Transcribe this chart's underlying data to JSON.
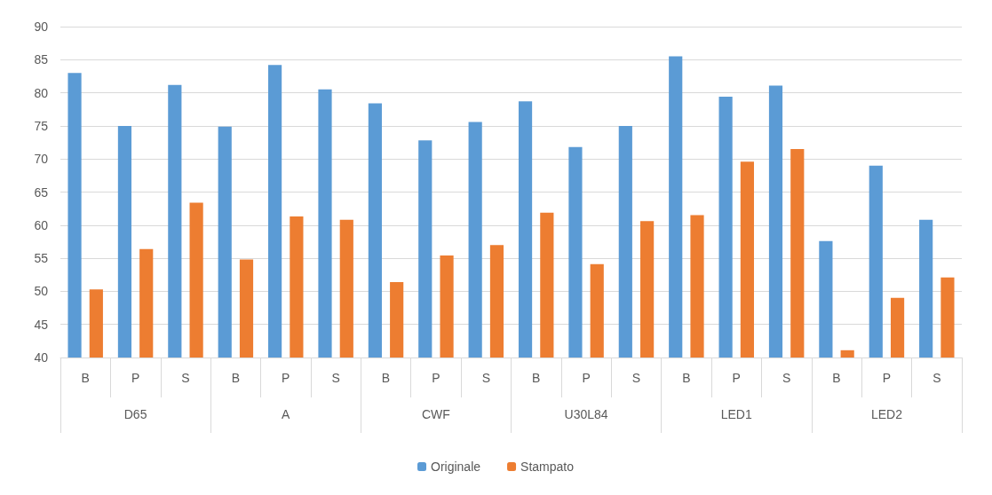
{
  "chart_data": {
    "type": "bar",
    "categories": [
      "B",
      "P",
      "S",
      "B",
      "P",
      "S",
      "B",
      "P",
      "S",
      "B",
      "P",
      "S",
      "B",
      "P",
      "S",
      "B",
      "P",
      "S"
    ],
    "annotations": [
      "D65",
      "A",
      "CWF",
      "U30L84",
      "LED1",
      "LED2"
    ],
    "series": [
      {
        "name": "Originale",
        "color": "#5b9bd5",
        "values": [
          83.0,
          75.0,
          81.2,
          74.9,
          84.2,
          80.5,
          78.4,
          72.8,
          75.6,
          78.7,
          71.8,
          75.0,
          85.5,
          79.4,
          81.1,
          57.6,
          69.0,
          60.8
        ]
      },
      {
        "name": "Stampato",
        "color": "#ed7d31",
        "values": [
          50.3,
          56.4,
          63.4,
          54.8,
          61.3,
          60.8,
          51.4,
          55.4,
          57.0,
          61.9,
          54.1,
          60.6,
          61.5,
          69.6,
          71.5,
          41.1,
          49.0,
          52.1
        ]
      }
    ],
    "ylim": [
      40,
      90
    ],
    "yticks": [
      40,
      45,
      50,
      55,
      60,
      65,
      70,
      75,
      80,
      85,
      90
    ],
    "grid": "y",
    "legend": "bottom"
  }
}
